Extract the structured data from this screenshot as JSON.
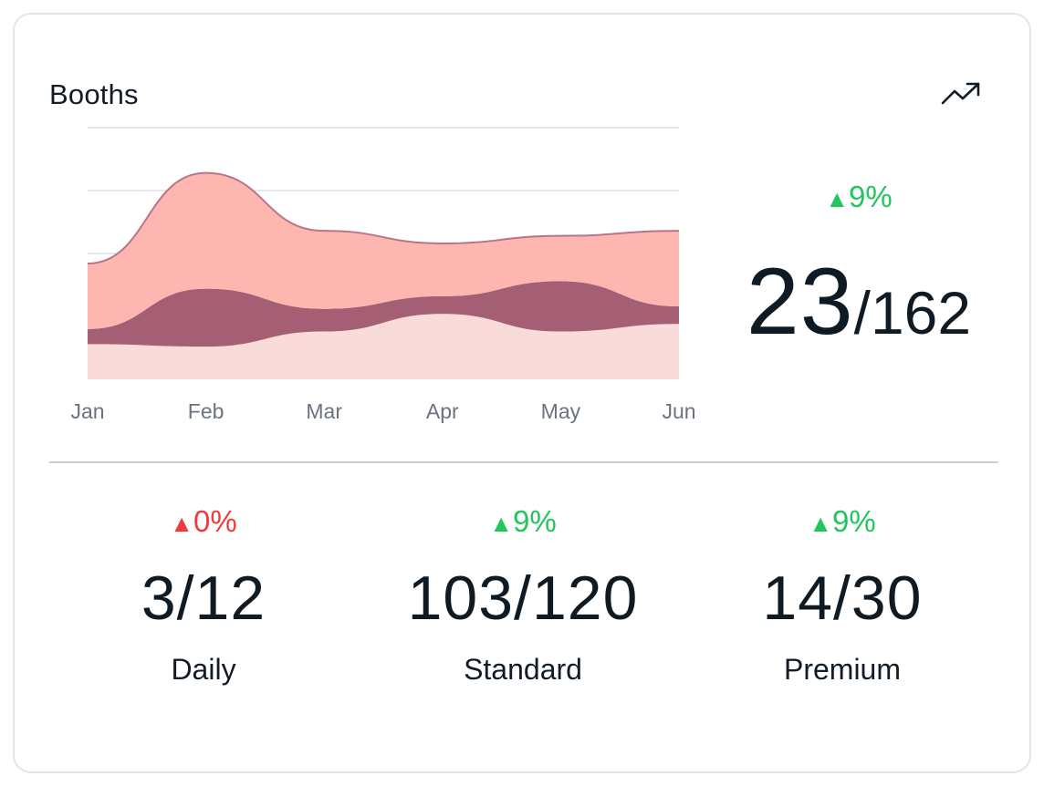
{
  "card": {
    "title": "Booths",
    "trend_icon": "trending-up-icon"
  },
  "summary": {
    "change": "9%",
    "direction": "up",
    "color": "#22c55e",
    "value": "23",
    "separator": "/",
    "total": "162"
  },
  "stats": [
    {
      "change": "0%",
      "direction": "up",
      "color": "#ef3b3b",
      "value": "3/12",
      "label": "Daily"
    },
    {
      "change": "9%",
      "direction": "up",
      "color": "#22c55e",
      "value": "103/120",
      "label": "Standard"
    },
    {
      "change": "9%",
      "direction": "up",
      "color": "#22c55e",
      "value": "14/30",
      "label": "Premium"
    }
  ],
  "chart_data": {
    "type": "area",
    "stacked": true,
    "categories": [
      "Jan",
      "Feb",
      "Mar",
      "Apr",
      "May",
      "Jun"
    ],
    "ylim": [
      0,
      100
    ],
    "grid": true,
    "series": [
      {
        "values": [
          14,
          13,
          19,
          26,
          19,
          22
        ],
        "color": "#f9dcd9"
      },
      {
        "values": [
          6,
          23,
          9,
          7,
          20,
          7
        ],
        "color": "#a55f74"
      },
      {
        "values": [
          26,
          46,
          31,
          21,
          18,
          30
        ],
        "color": "#fdb7b0"
      }
    ]
  }
}
